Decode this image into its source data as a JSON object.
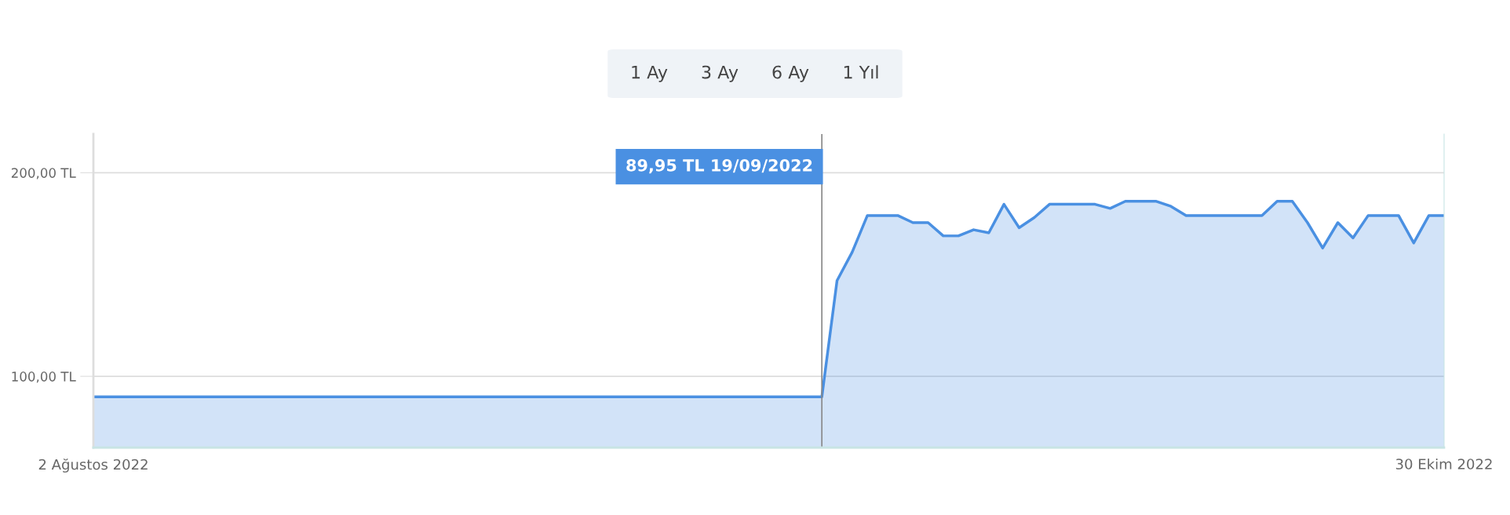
{
  "chart_data": {
    "type": "area",
    "x": [
      "2022-08-02",
      "2022-09-19",
      "2022-09-20",
      "2022-09-21",
      "2022-09-22",
      "2022-09-23",
      "2022-09-24",
      "2022-09-25",
      "2022-09-26",
      "2022-09-27",
      "2022-09-28",
      "2022-09-29",
      "2022-09-30",
      "2022-10-01",
      "2022-10-02",
      "2022-10-03",
      "2022-10-04",
      "2022-10-05",
      "2022-10-06",
      "2022-10-07",
      "2022-10-08",
      "2022-10-09",
      "2022-10-10",
      "2022-10-11",
      "2022-10-12",
      "2022-10-13",
      "2022-10-14",
      "2022-10-15",
      "2022-10-16",
      "2022-10-17",
      "2022-10-18",
      "2022-10-19",
      "2022-10-20",
      "2022-10-21",
      "2022-10-22",
      "2022-10-23",
      "2022-10-24",
      "2022-10-25",
      "2022-10-26",
      "2022-10-27",
      "2022-10-28",
      "2022-10-29",
      "2022-10-30"
    ],
    "series": [
      {
        "color": "#4a90e2",
        "values": [
          89.95,
          89.95,
          147,
          161,
          179,
          179,
          179,
          175.5,
          175.5,
          169,
          169,
          172,
          170.5,
          184.5,
          173,
          178,
          184.5,
          184.5,
          184.5,
          184.5,
          182.5,
          186,
          186,
          186,
          183.5,
          179,
          179,
          179,
          179,
          179,
          179,
          186,
          186,
          175.5,
          163,
          175.5,
          168,
          179,
          179,
          179,
          165.5,
          179,
          179
        ]
      }
    ],
    "xlim": [
      "2022-08-02",
      "2022-10-30"
    ],
    "xticks": [
      {
        "value": "2022-08-02",
        "label": "2 Ağustos 2022"
      },
      {
        "value": "2022-10-30",
        "label": "30 Ekim 2022"
      }
    ],
    "ylim": [
      65,
      219
    ],
    "yticks": [
      {
        "value": 100,
        "label": "100,00 TL"
      },
      {
        "value": 200,
        "label": "200,00 TL"
      }
    ],
    "grid": "y",
    "marker": "none",
    "legend": false,
    "ref_lines": [
      {
        "axis": "x",
        "value": "2022-09-19",
        "color": "#888888"
      }
    ],
    "annotations": [
      "1 Ay",
      "3 Ay",
      "6 Ay",
      "1 Yıl",
      "89,95 TL 19/09/2022"
    ]
  }
}
